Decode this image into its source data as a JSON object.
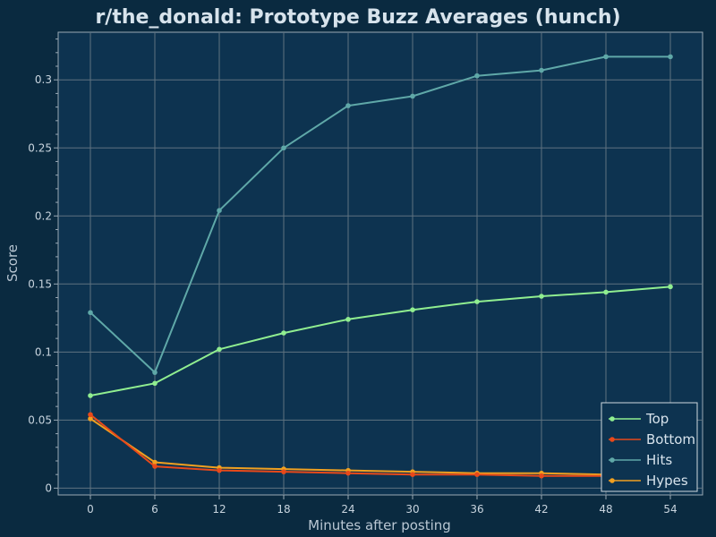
{
  "chart_data": {
    "type": "line",
    "title": "r/the_donald: Prototype Buzz Averages (hunch)",
    "xlabel": "Minutes after posting",
    "ylabel": "Score",
    "x": [
      0,
      6,
      12,
      18,
      24,
      30,
      36,
      42,
      48,
      54
    ],
    "xlim": [
      -3,
      57
    ],
    "ylim": [
      -0.005,
      0.335
    ],
    "x_ticks": [
      "0",
      "6",
      "12",
      "18",
      "24",
      "30",
      "36",
      "42",
      "48",
      "54"
    ],
    "y_ticks": [
      {
        "value": 0,
        "label": "0"
      },
      {
        "value": 0.05,
        "label": "0.05"
      },
      {
        "value": 0.1,
        "label": "0.1"
      },
      {
        "value": 0.15,
        "label": "0.15"
      },
      {
        "value": 0.2,
        "label": "0.2"
      },
      {
        "value": 0.25,
        "label": "0.25"
      },
      {
        "value": 0.3,
        "label": "0.3"
      }
    ],
    "grid": true,
    "legend_position": "bottom-right",
    "series": [
      {
        "name": "Top",
        "color": "#90ee90",
        "values": [
          0.068,
          0.077,
          0.102,
          0.114,
          0.124,
          0.131,
          0.137,
          0.141,
          0.144,
          0.148
        ]
      },
      {
        "name": "Bottom",
        "color": "#e8491a",
        "values": [
          0.054,
          0.016,
          0.013,
          0.012,
          0.011,
          0.01,
          0.01,
          0.009,
          0.009,
          0.009
        ]
      },
      {
        "name": "Hits",
        "color": "#5fa8a8",
        "values": [
          0.129,
          0.085,
          0.204,
          0.25,
          0.281,
          0.288,
          0.303,
          0.307,
          0.317,
          0.317
        ]
      },
      {
        "name": "Hypes",
        "color": "#f0a020",
        "values": [
          0.051,
          0.019,
          0.015,
          0.014,
          0.013,
          0.012,
          0.011,
          0.011,
          0.01,
          0.01
        ]
      }
    ]
  }
}
